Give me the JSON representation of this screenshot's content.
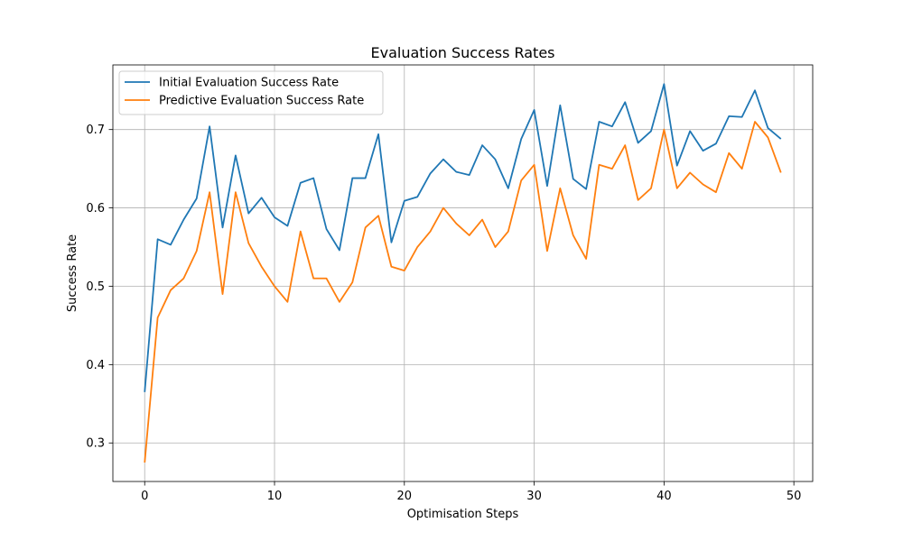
{
  "chart_data": {
    "type": "line",
    "title": "Evaluation Success Rates",
    "xlabel": "Optimisation Steps",
    "ylabel": "Success Rate",
    "xlim": [
      -2.45,
      51.45
    ],
    "ylim": [
      0.2508,
      0.7825
    ],
    "x_ticks": [
      0,
      10,
      20,
      30,
      40,
      50
    ],
    "y_ticks": [
      0.3,
      0.4,
      0.5,
      0.6,
      0.7
    ],
    "y_tick_labels": [
      "0.3",
      "0.4",
      "0.5",
      "0.6",
      "0.7"
    ],
    "grid": true,
    "legend_position": "upper-left",
    "x": [
      0,
      1,
      2,
      3,
      4,
      5,
      6,
      7,
      8,
      9,
      10,
      11,
      12,
      13,
      14,
      15,
      16,
      17,
      18,
      19,
      20,
      21,
      22,
      23,
      24,
      25,
      26,
      27,
      28,
      29,
      30,
      31,
      32,
      33,
      34,
      35,
      36,
      37,
      38,
      39,
      40,
      41,
      42,
      43,
      44,
      45,
      46,
      47,
      48,
      49
    ],
    "series": [
      {
        "name": "Initial Evaluation Success Rate",
        "color": "#1f77b4",
        "values": [
          0.365,
          0.56,
          0.553,
          0.585,
          0.612,
          0.704,
          0.575,
          0.667,
          0.593,
          0.613,
          0.588,
          0.577,
          0.632,
          0.638,
          0.573,
          0.546,
          0.638,
          0.638,
          0.694,
          0.556,
          0.609,
          0.614,
          0.644,
          0.662,
          0.646,
          0.642,
          0.68,
          0.662,
          0.625,
          0.688,
          0.725,
          0.628,
          0.731,
          0.637,
          0.624,
          0.71,
          0.704,
          0.735,
          0.683,
          0.698,
          0.758,
          0.654,
          0.698,
          0.673,
          0.682,
          0.717,
          0.716,
          0.75,
          0.702,
          0.688
        ]
      },
      {
        "name": "Predictive Evaluation Success Rate",
        "color": "#ff7f0e",
        "values": [
          0.275,
          0.46,
          0.495,
          0.51,
          0.545,
          0.62,
          0.49,
          0.62,
          0.555,
          0.525,
          0.5,
          0.48,
          0.57,
          0.51,
          0.51,
          0.48,
          0.505,
          0.575,
          0.59,
          0.525,
          0.52,
          0.55,
          0.57,
          0.6,
          0.58,
          0.565,
          0.585,
          0.55,
          0.57,
          0.635,
          0.655,
          0.545,
          0.625,
          0.565,
          0.535,
          0.655,
          0.65,
          0.68,
          0.61,
          0.625,
          0.7,
          0.625,
          0.645,
          0.63,
          0.62,
          0.67,
          0.65,
          0.71,
          0.69,
          0.645
        ]
      }
    ]
  }
}
